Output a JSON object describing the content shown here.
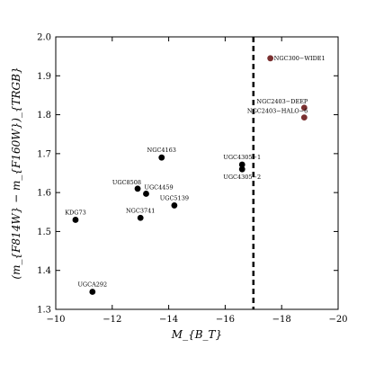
{
  "chart_data": {
    "type": "scatter",
    "xlabel": "M_{B_T}",
    "ylabel": "(m_{F814W} − m_{F160W})_{TRGB}",
    "xlim": [
      -10,
      -20
    ],
    "ylim": [
      1.3,
      2.0
    ],
    "x_inverted": true,
    "xticks": [
      -10,
      -12,
      -14,
      -16,
      -18,
      -20
    ],
    "xtick_labels": [
      "−10",
      "−12",
      "−14",
      "−16",
      "−18",
      "−20"
    ],
    "yticks": [
      1.3,
      1.4,
      1.5,
      1.6,
      1.7,
      1.8,
      1.9,
      2.0
    ],
    "ytick_labels": [
      "1.3",
      "1.4",
      "1.5",
      "1.6",
      "1.7",
      "1.8",
      "1.9",
      "2.0"
    ],
    "vline": {
      "x": -17.0,
      "style": "dashed",
      "color": "#000000"
    },
    "colors": {
      "main": "#000000",
      "halo": "#7a3030"
    },
    "points": [
      {
        "label": "KDG73",
        "x": -10.7,
        "y": 1.53,
        "group": "main",
        "label_pos": "above"
      },
      {
        "label": "UGCA292",
        "x": -11.3,
        "y": 1.345,
        "group": "main",
        "label_pos": "above"
      },
      {
        "label": "UGC8508",
        "x": -12.9,
        "y": 1.61,
        "group": "main",
        "label_pos": "above-left"
      },
      {
        "label": "NGC3741",
        "x": -13.0,
        "y": 1.535,
        "group": "main",
        "label_pos": "above"
      },
      {
        "label": "UGC4459",
        "x": -13.2,
        "y": 1.597,
        "group": "main",
        "label_pos": "above-right"
      },
      {
        "label": "NGC4163",
        "x": -13.75,
        "y": 1.69,
        "group": "main",
        "label_pos": "above"
      },
      {
        "label": "UGC5139",
        "x": -14.2,
        "y": 1.567,
        "group": "main",
        "label_pos": "above"
      },
      {
        "label": "UGC4305−1",
        "x": -16.6,
        "y": 1.672,
        "group": "main",
        "label_pos": "above"
      },
      {
        "label": "UGC4305−2",
        "x": -16.6,
        "y": 1.66,
        "group": "main",
        "label_pos": "below"
      },
      {
        "label": "NGC300−WIDE1",
        "x": -17.6,
        "y": 1.945,
        "group": "halo",
        "label_pos": "right"
      },
      {
        "label": "NGC2403−DEEP",
        "x": -18.8,
        "y": 1.818,
        "group": "halo",
        "label_pos": "above-left"
      },
      {
        "label": "NGC2403−HALO−6",
        "x": -18.8,
        "y": 1.793,
        "group": "halo",
        "label_pos": "above-left"
      }
    ]
  }
}
